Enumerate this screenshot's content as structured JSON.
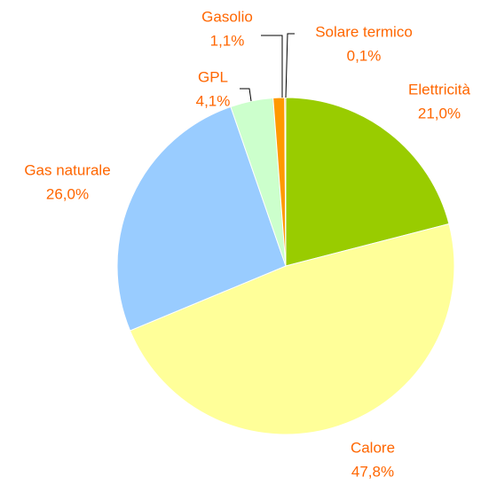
{
  "chart_data": {
    "type": "pie",
    "categories": [
      "Elettricità",
      "Calore",
      "Gas naturale",
      "GPL",
      "Gasolio",
      "Solare termico"
    ],
    "values": [
      21.0,
      47.8,
      26.0,
      4.1,
      1.1,
      0.1
    ],
    "value_labels": [
      "21,0%",
      "47,8%",
      "26,0%",
      "4,1%",
      "1,1%",
      "0,1%"
    ],
    "colors": [
      "#99cc00",
      "#ffff99",
      "#99ccff",
      "#ccffcc",
      "#ff9900",
      "#ff6600"
    ]
  }
}
